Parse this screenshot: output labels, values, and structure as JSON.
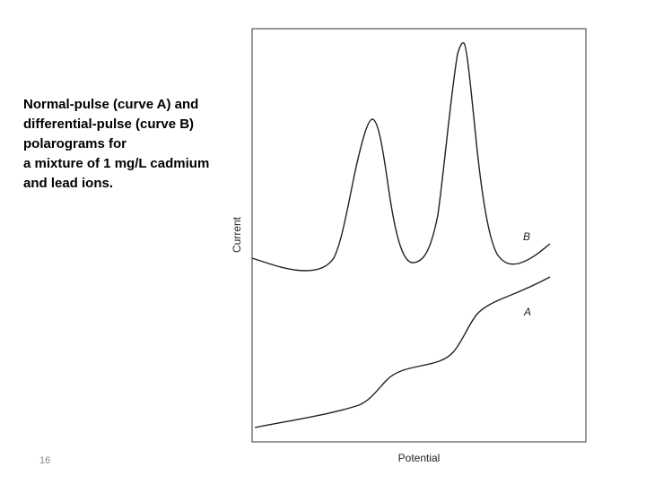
{
  "caption": {
    "lines": [
      "Normal-pulse (curve A) and",
      "differential-pulse (curve B)",
      "polarograms for",
      "a mixture of 1 mg/L cadmium",
      "and lead ions."
    ]
  },
  "page_number": "16",
  "figure": {
    "y_axis_label": "Current",
    "x_axis_label": "Potential",
    "curve_labels": [
      "B",
      "A"
    ]
  }
}
